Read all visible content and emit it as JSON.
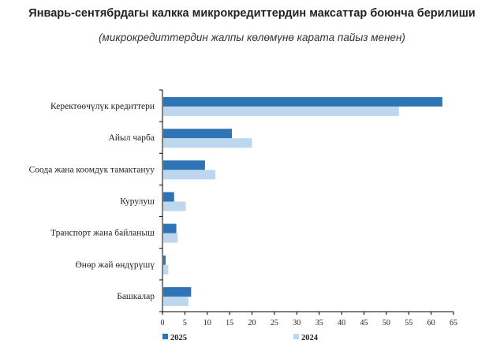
{
  "chart_data": {
    "type": "bar",
    "orientation": "horizontal",
    "title": "Январь-сентябрдагы калкка микрокредиттердин максаттар боюнча берилиши",
    "subtitle": "(микрокредиттердин жалпы көлөмүнө карата пайыз менен)",
    "categories": [
      "Керектөөчүлүк кредиттери",
      "Айыл чарба",
      "Соода жана коомдук тамактануу",
      "Курулуш",
      "Транспорт жана байланыш",
      "Өнөр жай өндүрүшү",
      "Башкалар"
    ],
    "series": [
      {
        "name": "2025",
        "color": "#2e74b5",
        "values": [
          62.5,
          15.5,
          9.5,
          2.6,
          3.1,
          0.7,
          6.4
        ]
      },
      {
        "name": "2024",
        "color": "#bdd7ee",
        "values": [
          52.8,
          20.0,
          11.8,
          5.2,
          3.4,
          1.3,
          5.8
        ]
      }
    ],
    "xlim": [
      0,
      65
    ],
    "xticks": [
      "0",
      "5",
      "10",
      "15",
      "20",
      "25",
      "30",
      "35",
      "40",
      "45",
      "50",
      "55",
      "60",
      "65"
    ],
    "xlabel": "",
    "ylabel": "",
    "grid": false,
    "legend_position": "bottom"
  }
}
